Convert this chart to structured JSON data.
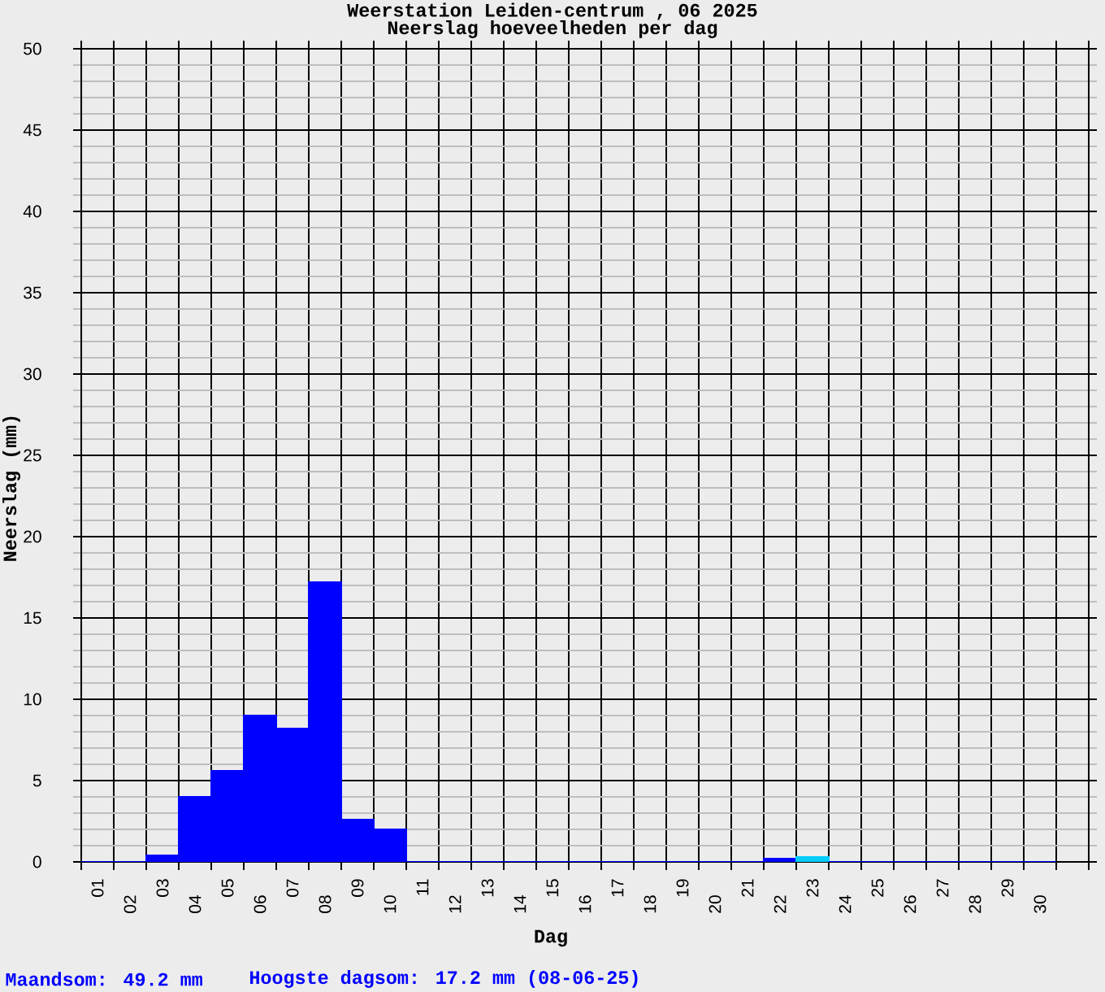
{
  "chart_data": {
    "type": "bar",
    "title": "Weerstation Leiden-centrum , 06 2025",
    "subtitle": "Neerslag hoeveelheden per dag",
    "xlabel": "Dag",
    "ylabel": "Neerslag (mm)",
    "categories": [
      "01",
      "02",
      "03",
      "04",
      "05",
      "06",
      "07",
      "08",
      "09",
      "10",
      "11",
      "12",
      "13",
      "14",
      "15",
      "16",
      "17",
      "18",
      "19",
      "20",
      "21",
      "22",
      "23",
      "24",
      "25",
      "26",
      "27",
      "28",
      "29",
      "30",
      null
    ],
    "values": [
      0,
      0,
      0.4,
      4.0,
      5.6,
      9.0,
      8.2,
      17.2,
      2.6,
      2.0,
      0,
      0,
      0,
      0,
      0,
      0,
      0,
      0,
      0,
      0,
      0,
      0.2,
      0.3,
      0,
      0,
      0,
      0,
      0,
      0,
      0,
      null
    ],
    "colors": [
      "#0000ff",
      "#0000ff",
      "#0000ff",
      "#0000ff",
      "#0000ff",
      "#0000ff",
      "#0000ff",
      "#0000ff",
      "#0000ff",
      "#0000ff",
      "#0000ff",
      "#0000ff",
      "#0000ff",
      "#0000ff",
      "#0000ff",
      "#0000ff",
      "#0000ff",
      "#0000ff",
      "#0000ff",
      "#0000ff",
      "#0000ff",
      "#0000ff",
      "#00ccff",
      "#0000ff",
      "#0000ff",
      "#0000ff",
      "#0000ff",
      "#0000ff",
      "#0000ff",
      "#0000ff",
      null
    ],
    "ylim": [
      0,
      50
    ],
    "yticks": [
      0,
      5,
      10,
      15,
      20,
      25,
      30,
      35,
      40,
      45,
      50
    ],
    "grid": true,
    "annotations": [
      "Maandsom: 49.2 mm",
      "Hoogste dagsom: 17.2 mm (08-06-25)"
    ]
  }
}
